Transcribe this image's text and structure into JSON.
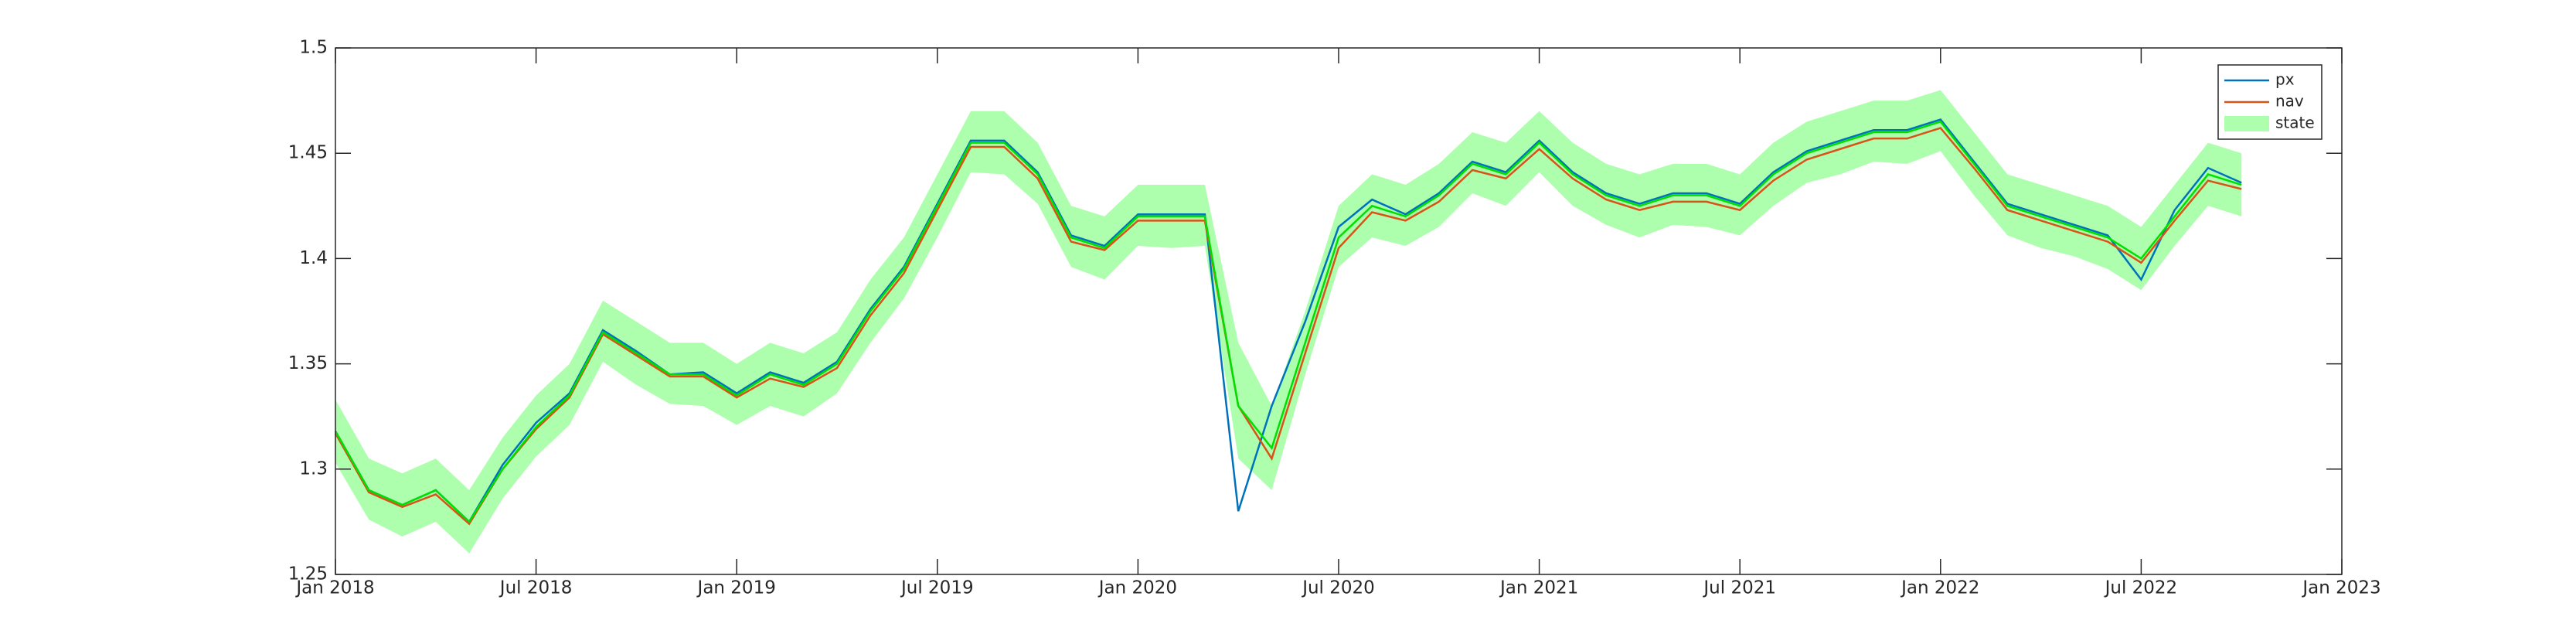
{
  "chart_data": {
    "type": "line",
    "x": [
      "2018-01",
      "2018-02",
      "2018-03",
      "2018-04",
      "2018-05",
      "2018-06",
      "2018-07",
      "2018-08",
      "2018-09",
      "2018-10",
      "2018-11",
      "2018-12",
      "2019-01",
      "2019-02",
      "2019-03",
      "2019-04",
      "2019-05",
      "2019-06",
      "2019-07",
      "2019-08",
      "2019-09",
      "2019-10",
      "2019-11",
      "2019-12",
      "2020-01",
      "2020-02",
      "2020-03",
      "2020-04",
      "2020-05",
      "2020-06",
      "2020-07",
      "2020-08",
      "2020-09",
      "2020-10",
      "2020-11",
      "2020-12",
      "2021-01",
      "2021-02",
      "2021-03",
      "2021-04",
      "2021-05",
      "2021-06",
      "2021-07",
      "2021-08",
      "2021-09",
      "2021-10",
      "2021-11",
      "2021-12",
      "2022-01",
      "2022-02",
      "2022-03",
      "2022-04",
      "2022-05",
      "2022-06",
      "2022-07",
      "2022-08",
      "2022-09",
      "2022-10"
    ],
    "series": [
      {
        "name": "px",
        "color": "#0072bd",
        "values": [
          1.318,
          1.29,
          1.283,
          1.29,
          1.275,
          1.302,
          1.322,
          1.336,
          1.366,
          1.356,
          1.345,
          1.346,
          1.336,
          1.346,
          1.341,
          1.351,
          1.376,
          1.396,
          1.426,
          1.456,
          1.456,
          1.441,
          1.411,
          1.406,
          1.421,
          1.421,
          1.421,
          1.28,
          1.33,
          1.37,
          1.415,
          1.428,
          1.421,
          1.431,
          1.446,
          1.441,
          1.456,
          1.441,
          1.431,
          1.426,
          1.431,
          1.431,
          1.426,
          1.441,
          1.451,
          1.456,
          1.461,
          1.461,
          1.466,
          1.446,
          1.426,
          1.421,
          1.416,
          1.411,
          1.39,
          1.423,
          1.443,
          1.436
        ]
      },
      {
        "name": "nav",
        "color": "#d95319",
        "values": [
          1.317,
          1.289,
          1.282,
          1.288,
          1.274,
          1.3,
          1.319,
          1.334,
          1.364,
          1.354,
          1.344,
          1.344,
          1.334,
          1.343,
          1.339,
          1.348,
          1.373,
          1.393,
          1.423,
          1.453,
          1.453,
          1.438,
          1.408,
          1.404,
          1.418,
          1.418,
          1.418,
          1.33,
          1.305,
          1.355,
          1.405,
          1.422,
          1.418,
          1.427,
          1.442,
          1.438,
          1.452,
          1.438,
          1.428,
          1.423,
          1.427,
          1.427,
          1.423,
          1.437,
          1.447,
          1.452,
          1.457,
          1.457,
          1.462,
          1.443,
          1.423,
          1.418,
          1.413,
          1.408,
          1.398,
          1.418,
          1.437,
          1.433
        ]
      },
      {
        "name": "state",
        "color": "#00e000",
        "band_color": "#adffad",
        "values": [
          1.318,
          1.29,
          1.283,
          1.29,
          1.275,
          1.3,
          1.32,
          1.335,
          1.365,
          1.355,
          1.345,
          1.345,
          1.335,
          1.345,
          1.34,
          1.35,
          1.375,
          1.395,
          1.425,
          1.455,
          1.455,
          1.44,
          1.41,
          1.405,
          1.42,
          1.42,
          1.42,
          1.33,
          1.31,
          1.36,
          1.41,
          1.425,
          1.42,
          1.43,
          1.445,
          1.44,
          1.455,
          1.44,
          1.43,
          1.425,
          1.43,
          1.43,
          1.425,
          1.44,
          1.45,
          1.455,
          1.46,
          1.46,
          1.465,
          1.445,
          1.425,
          1.42,
          1.415,
          1.41,
          1.4,
          1.42,
          1.44,
          1.435
        ],
        "lower": [
          1.303,
          1.276,
          1.268,
          1.275,
          1.26,
          1.286,
          1.306,
          1.321,
          1.351,
          1.34,
          1.331,
          1.33,
          1.321,
          1.33,
          1.325,
          1.336,
          1.36,
          1.381,
          1.41,
          1.441,
          1.44,
          1.426,
          1.396,
          1.39,
          1.406,
          1.405,
          1.406,
          1.305,
          1.29,
          1.345,
          1.396,
          1.41,
          1.406,
          1.415,
          1.431,
          1.425,
          1.441,
          1.425,
          1.416,
          1.41,
          1.416,
          1.415,
          1.411,
          1.425,
          1.436,
          1.44,
          1.446,
          1.445,
          1.451,
          1.43,
          1.411,
          1.405,
          1.401,
          1.395,
          1.385,
          1.406,
          1.425,
          1.42
        ],
        "upper": [
          1.333,
          1.305,
          1.298,
          1.305,
          1.29,
          1.315,
          1.335,
          1.35,
          1.38,
          1.37,
          1.36,
          1.36,
          1.35,
          1.36,
          1.355,
          1.365,
          1.39,
          1.41,
          1.44,
          1.47,
          1.47,
          1.455,
          1.425,
          1.42,
          1.435,
          1.435,
          1.435,
          1.36,
          1.33,
          1.375,
          1.425,
          1.44,
          1.435,
          1.445,
          1.46,
          1.455,
          1.47,
          1.455,
          1.445,
          1.44,
          1.445,
          1.445,
          1.44,
          1.455,
          1.465,
          1.47,
          1.475,
          1.475,
          1.48,
          1.46,
          1.44,
          1.435,
          1.43,
          1.425,
          1.415,
          1.435,
          1.455,
          1.45
        ]
      }
    ],
    "xlim": [
      "2018-01",
      "2023-01"
    ],
    "xticks": [
      {
        "value": "2018-01",
        "label": "Jan 2018"
      },
      {
        "value": "2018-07",
        "label": "Jul 2018"
      },
      {
        "value": "2019-01",
        "label": "Jan 2019"
      },
      {
        "value": "2019-07",
        "label": "Jul 2019"
      },
      {
        "value": "2020-01",
        "label": "Jan 2020"
      },
      {
        "value": "2020-07",
        "label": "Jul 2020"
      },
      {
        "value": "2021-01",
        "label": "Jan 2021"
      },
      {
        "value": "2021-07",
        "label": "Jul 2021"
      },
      {
        "value": "2022-01",
        "label": "Jan 2022"
      },
      {
        "value": "2022-07",
        "label": "Jul 2022"
      },
      {
        "value": "2023-01",
        "label": "Jan 2023"
      }
    ],
    "ylim": [
      1.25,
      1.5
    ],
    "yticks": [
      1.25,
      1.3,
      1.35,
      1.4,
      1.45,
      1.5
    ],
    "legend": "upper right"
  }
}
